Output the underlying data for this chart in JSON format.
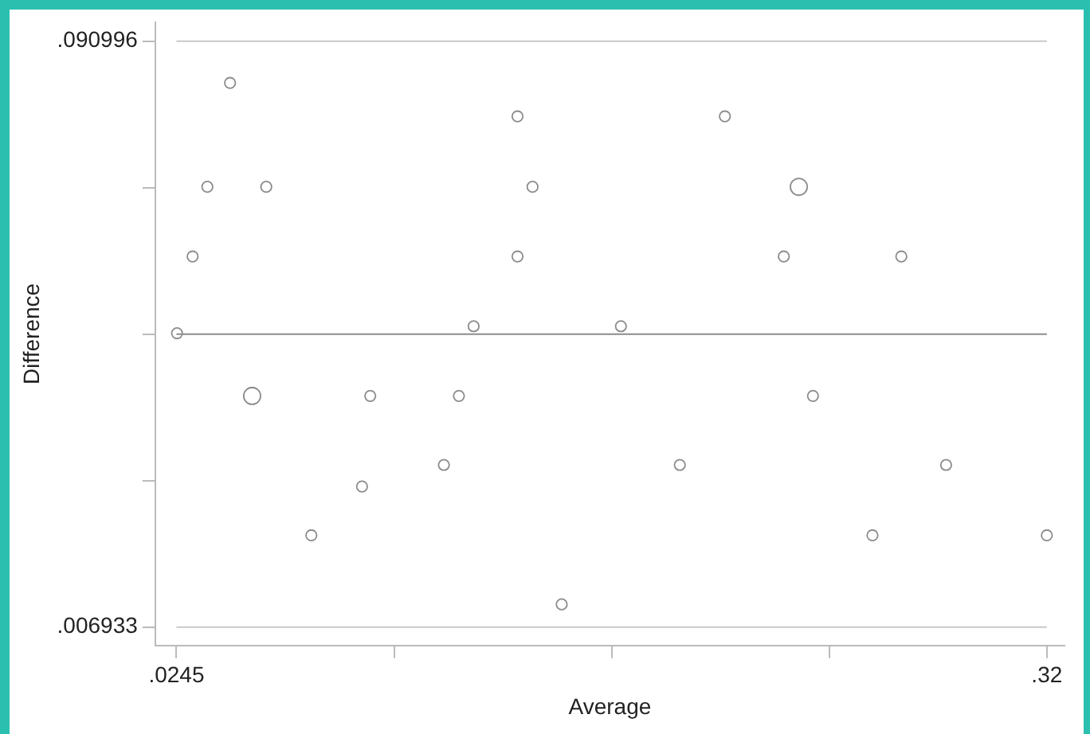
{
  "chart_data": {
    "type": "bubble",
    "xlabel": "Average",
    "ylabel": "Difference",
    "xlim": [
      0.0173,
      0.326
    ],
    "ylim": [
      0.0043,
      0.0937
    ],
    "xticks": [
      {
        "value": 0.0245,
        "label": ".0245"
      },
      {
        "value": 0.098375,
        "label": null
      },
      {
        "value": 0.17225,
        "label": null
      },
      {
        "value": 0.246125,
        "label": null
      },
      {
        "value": 0.32,
        "label": ".32"
      }
    ],
    "yticks": [
      {
        "value": 0.006933,
        "label": ".006933"
      },
      {
        "value": 0.027949,
        "label": null
      },
      {
        "value": 0.048965,
        "label": null
      },
      {
        "value": 0.06998,
        "label": null
      },
      {
        "value": 0.090996,
        "label": ".090996"
      }
    ],
    "grid": false,
    "legend": false,
    "marker": "circle",
    "ref_lines": [
      {
        "axis": "y",
        "value": 0.090996,
        "color": "#c8c8c8"
      },
      {
        "axis": "y",
        "value": 0.048965,
        "color": "#8c8c8c"
      },
      {
        "axis": "y",
        "value": 0.006933,
        "color": "#c8c8c8"
      }
    ],
    "series": [
      {
        "color": "#8c8c8c",
        "x": [
          0.0247,
          0.03,
          0.035,
          0.0427,
          0.0502,
          0.055,
          0.0703,
          0.0875,
          0.0903,
          0.1153,
          0.1204,
          0.1254,
          0.1403,
          0.1454,
          0.1403,
          0.1553,
          0.1754,
          0.1954,
          0.2107,
          0.2307,
          0.2358,
          0.2406,
          0.2608,
          0.2706,
          0.2858,
          0.32
        ],
        "values": [
          0.0491,
          0.0601,
          0.0701,
          0.085,
          0.0401,
          0.0701,
          0.0201,
          0.0271,
          0.0401,
          0.0302,
          0.0401,
          0.0501,
          0.0802,
          0.0701,
          0.0601,
          0.0102,
          0.0501,
          0.0302,
          0.0802,
          0.0601,
          0.0701,
          0.0401,
          0.0201,
          0.0601,
          0.0302,
          0.0201
        ],
        "sizes": [
          0.4,
          0.4,
          0.4,
          0.4,
          1,
          0.4,
          0.4,
          0.4,
          0.4,
          0.4,
          0.4,
          0.4,
          0.4,
          0.4,
          0.4,
          0.4,
          0.4,
          0.4,
          0.4,
          0.4,
          1,
          0.4,
          0.4,
          0.4,
          0.4,
          0.4
        ]
      }
    ]
  }
}
